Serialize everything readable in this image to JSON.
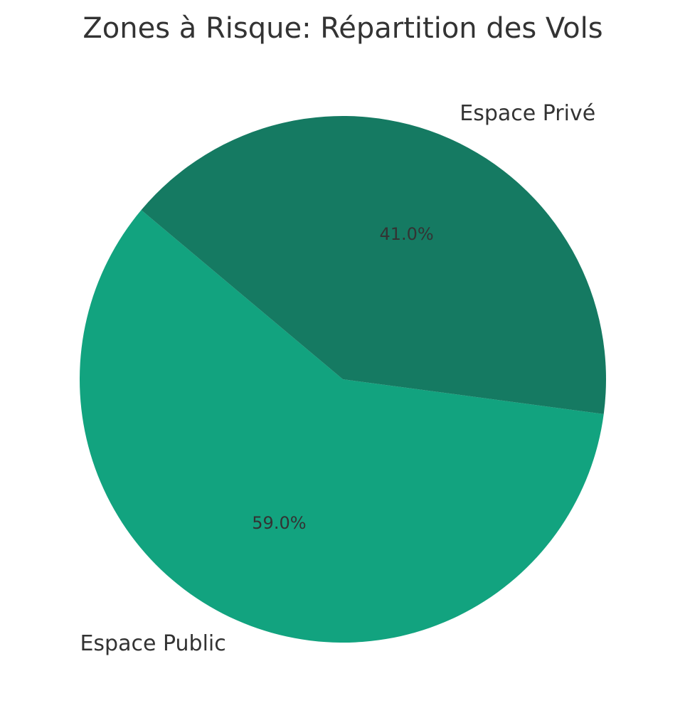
{
  "chart_data": {
    "type": "pie",
    "title": "Zones à Risque: Répartition des Vols",
    "categories": [
      "Espace Public",
      "Espace Privé"
    ],
    "values": [
      59.0,
      41.0
    ],
    "value_labels": [
      "59.0%",
      "41.0%"
    ],
    "colors": [
      "#12a37f",
      "#157a62"
    ]
  }
}
